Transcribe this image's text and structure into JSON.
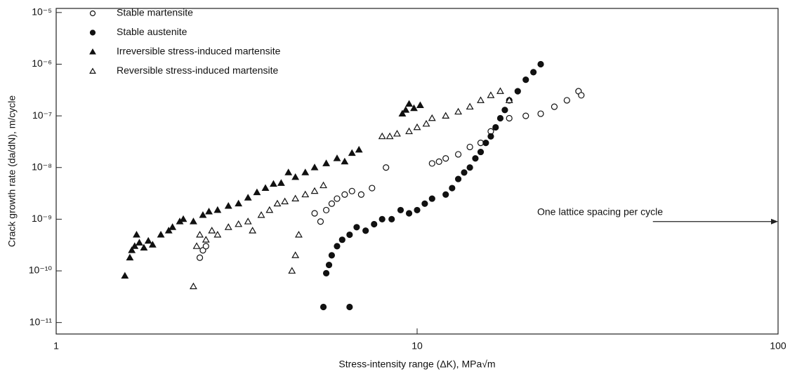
{
  "chart_data": {
    "type": "scatter",
    "x_label": "Stress-intensity range (ΔK), MPa√m",
    "y_label": "Crack growth rate (da/dN), m/cycle",
    "log_x": true,
    "log_y": true,
    "xlim": [
      1,
      100
    ],
    "xticks": [
      1,
      10,
      100
    ],
    "ylim": [
      6e-12,
      1.2e-05
    ],
    "yticks": [
      {
        "value": 1e-11,
        "label": "10⁻¹¹"
      },
      {
        "value": 1e-10,
        "label": "10⁻¹⁰"
      },
      {
        "value": 1e-09,
        "label": "10⁻⁹"
      },
      {
        "value": 1e-08,
        "label": "10⁻⁸"
      },
      {
        "value": 1e-07,
        "label": "10⁻⁷"
      },
      {
        "value": 1e-06,
        "label": "10⁻⁶"
      },
      {
        "value": 1e-05,
        "label": "10⁻⁵"
      }
    ],
    "legend": "upper left",
    "series": [
      {
        "name": "Stable martensite",
        "color": "#111111",
        "marker": "circle",
        "filled": false,
        "x": [
          2.5,
          2.55,
          2.6,
          5.2,
          5.4,
          5.6,
          5.8,
          6.0,
          6.3,
          6.6,
          7.0,
          7.5,
          8.2,
          11,
          11.5,
          12,
          13,
          14,
          15,
          16,
          18,
          20,
          22,
          24,
          26,
          28,
          28.5
        ],
        "values": [
          1.8e-10,
          2.5e-10,
          3e-10,
          1.3e-09,
          9e-10,
          1.5e-09,
          2e-09,
          2.5e-09,
          3e-09,
          3.5e-09,
          3e-09,
          4e-09,
          1e-08,
          1.2e-08,
          1.3e-08,
          1.5e-08,
          1.8e-08,
          2.5e-08,
          3e-08,
          5e-08,
          9e-08,
          1e-07,
          1.1e-07,
          1.5e-07,
          2e-07,
          3e-07,
          2.5e-07
        ]
      },
      {
        "name": "Stable austenite",
        "color": "#111111",
        "marker": "circle",
        "filled": true,
        "x": [
          5.5,
          6.5,
          5.6,
          5.7,
          5.8,
          6.0,
          6.2,
          6.5,
          6.8,
          7.2,
          7.6,
          8.0,
          8.5,
          9.0,
          9.5,
          10,
          10.5,
          11,
          12,
          12.5,
          13,
          13.5,
          14,
          14.5,
          15,
          15.5,
          16,
          16.5,
          17,
          17.5,
          18,
          19,
          20,
          21,
          22
        ],
        "values": [
          2e-11,
          2e-11,
          9e-11,
          1.3e-10,
          2e-10,
          3e-10,
          4e-10,
          5e-10,
          7e-10,
          6e-10,
          8e-10,
          1e-09,
          1e-09,
          1.5e-09,
          1.3e-09,
          1.5e-09,
          2e-09,
          2.5e-09,
          3e-09,
          4e-09,
          6e-09,
          8e-09,
          1e-08,
          1.5e-08,
          2e-08,
          3e-08,
          4e-08,
          6e-08,
          9e-08,
          1.3e-07,
          2e-07,
          3e-07,
          5e-07,
          7e-07,
          1e-06
        ]
      },
      {
        "name": "Irreversible stress-induced martensite",
        "color": "#111111",
        "marker": "triangle",
        "filled": true,
        "x": [
          1.55,
          1.6,
          1.62,
          1.65,
          1.67,
          1.7,
          1.75,
          1.8,
          1.85,
          1.95,
          2.05,
          2.1,
          2.2,
          2.25,
          2.4,
          2.55,
          2.65,
          2.8,
          3.0,
          3.2,
          3.4,
          3.6,
          3.8,
          4.0,
          4.2,
          4.4,
          4.6,
          4.9,
          5.2,
          5.6,
          6.0,
          6.3,
          6.6,
          6.9,
          9.1,
          9.3,
          9.5,
          9.8,
          10.2
        ],
        "values": [
          8e-11,
          1.8e-10,
          2.5e-10,
          3e-10,
          5e-10,
          3.5e-10,
          2.8e-10,
          3.8e-10,
          3.2e-10,
          5e-10,
          6e-10,
          7e-10,
          9e-10,
          1e-09,
          9e-10,
          1.2e-09,
          1.4e-09,
          1.5e-09,
          1.8e-09,
          2e-09,
          2.6e-09,
          3.3e-09,
          4e-09,
          4.8e-09,
          5e-09,
          8e-09,
          6.5e-09,
          8e-09,
          1e-08,
          1.2e-08,
          1.5e-08,
          1.3e-08,
          1.9e-08,
          2.2e-08,
          1.1e-07,
          1.3e-07,
          1.7e-07,
          1.4e-07,
          1.6e-07
        ]
      },
      {
        "name": "Reversible stress-induced martensite",
        "color": "#111111",
        "marker": "triangle",
        "filled": false,
        "x": [
          2.4,
          2.45,
          2.5,
          2.6,
          2.7,
          2.8,
          3.0,
          3.2,
          3.4,
          3.5,
          3.7,
          3.9,
          4.1,
          4.3,
          4.6,
          4.9,
          5.2,
          5.5,
          4.5,
          4.6,
          4.7,
          8.0,
          8.4,
          8.8,
          9.5,
          10,
          10.6,
          11,
          12,
          13,
          14,
          15,
          16,
          17,
          18
        ],
        "values": [
          5e-11,
          3e-10,
          5e-10,
          4e-10,
          6e-10,
          5e-10,
          7e-10,
          8e-10,
          9e-10,
          6e-10,
          1.2e-09,
          1.5e-09,
          2e-09,
          2.2e-09,
          2.5e-09,
          3e-09,
          3.5e-09,
          4.5e-09,
          1e-10,
          2e-10,
          5e-10,
          4e-08,
          4e-08,
          4.5e-08,
          5e-08,
          6e-08,
          7e-08,
          9e-08,
          1e-07,
          1.2e-07,
          1.5e-07,
          2e-07,
          2.5e-07,
          3e-07,
          2e-07
        ]
      }
    ],
    "annotation": {
      "text": "One lattice spacing per cycle",
      "y": 9e-10,
      "x": [
        45,
        100
      ]
    }
  }
}
